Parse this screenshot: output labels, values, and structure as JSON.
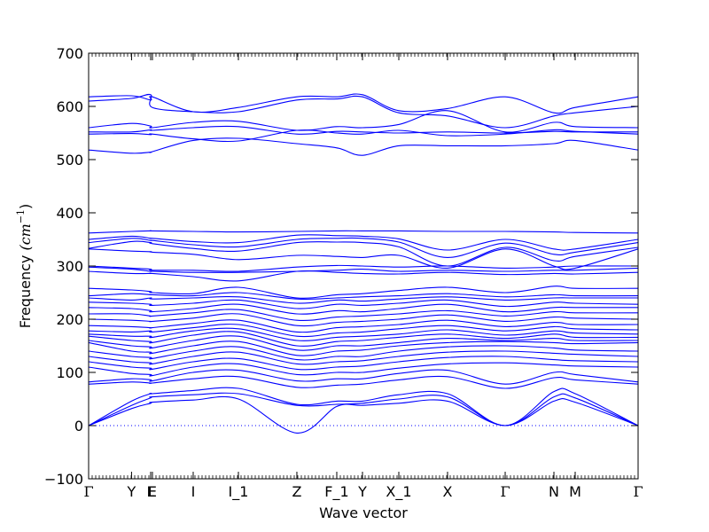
{
  "chart_data": {
    "type": "line",
    "title": "",
    "xlabel": "Wave vector",
    "ylabel": "Frequency (cm⁻¹)",
    "ylabel_text": "Frequency ",
    "ylabel_unit": "(cm",
    "ylabel_exp": "−1",
    "ylabel_close": ")",
    "ylim": [
      -100,
      700
    ],
    "yticks": [
      -100,
      0,
      100,
      200,
      300,
      400,
      500,
      600,
      700
    ],
    "grid": false,
    "line_color": "#0000ff",
    "zero_line_color": "#0000ff",
    "kpoints": [
      {
        "label": "Γ",
        "x": 0.0
      },
      {
        "label": "Y",
        "x": 0.0781
      },
      {
        "label": "L",
        "x": 0.1129
      },
      {
        "label": "E",
        "x": 0.1161
      },
      {
        "label": "I",
        "x": 0.1903
      },
      {
        "label": "I_1",
        "x": 0.2726
      },
      {
        "label": "Z",
        "x": 0.379
      },
      {
        "label": "F_1",
        "x": 0.4516
      },
      {
        "label": "Y",
        "x": 0.4984
      },
      {
        "label": "X_1",
        "x": 0.5645
      },
      {
        "label": "X",
        "x": 0.6532
      },
      {
        "label": "Γ",
        "x": 0.7581
      },
      {
        "label": "N",
        "x": 0.8468
      },
      {
        "label": "M",
        "x": 0.8855
      },
      {
        "label": "Γ",
        "x": 1.0
      }
    ],
    "optical_bands": [
      [
        618,
        620,
        612,
        618,
        590,
        598,
        618,
        618,
        622,
        592,
        596,
        618,
        588,
        598,
        618
      ],
      [
        610,
        615,
        622,
        598,
        590,
        590,
        612,
        614,
        618,
        588,
        582,
        560,
        582,
        588,
        600
      ],
      [
        560,
        568,
        563,
        560,
        570,
        572,
        555,
        562,
        560,
        566,
        592,
        552,
        570,
        562,
        560
      ],
      [
        552,
        552,
        556,
        555,
        560,
        562,
        548,
        553,
        552,
        550,
        552,
        550,
        553,
        552,
        552
      ],
      [
        548,
        549,
        547,
        548,
        539,
        535,
        555,
        550,
        548,
        555,
        545,
        548,
        556,
        553,
        548
      ],
      [
        518,
        512,
        514,
        515,
        536,
        540,
        530,
        522,
        508,
        526,
        526,
        526,
        530,
        536,
        518
      ]
    ],
    "mid_bands": [
      [
        362,
        365,
        366,
        366,
        365,
        364,
        365,
        366,
        366,
        366,
        365,
        365,
        364,
        363,
        362
      ],
      [
        350,
        356,
        352,
        352,
        346,
        344,
        358,
        357,
        356,
        351,
        330,
        350,
        332,
        332,
        350
      ],
      [
        344,
        352,
        348,
        348,
        340,
        336,
        350,
        352,
        352,
        345,
        316,
        343,
        322,
        326,
        344
      ],
      [
        333,
        346,
        344,
        342,
        333,
        328,
        344,
        345,
        344,
        336,
        300,
        335,
        310,
        318,
        335
      ],
      [
        332,
        328,
        327,
        326,
        322,
        312,
        320,
        318,
        316,
        320,
        296,
        332,
        300,
        296,
        332
      ],
      [
        300,
        296,
        294,
        292,
        292,
        290,
        298,
        301,
        300,
        298,
        300,
        296,
        298,
        300,
        300
      ],
      [
        298,
        294,
        290,
        290,
        288,
        288,
        290,
        292,
        294,
        290,
        292,
        290,
        292,
        292,
        296
      ],
      [
        290,
        286,
        286,
        286,
        280,
        272,
        290,
        288,
        286,
        285,
        288,
        284,
        286,
        285,
        288
      ]
    ],
    "low_bands": [
      [
        258,
        255,
        252,
        250,
        248,
        260,
        240,
        246,
        248,
        254,
        260,
        250,
        262,
        258,
        258
      ],
      [
        244,
        248,
        246,
        246,
        244,
        250,
        238,
        240,
        242,
        244,
        248,
        242,
        246,
        244,
        244
      ],
      [
        240,
        236,
        240,
        238,
        240,
        242,
        230,
        236,
        234,
        238,
        242,
        236,
        240,
        240,
        240
      ],
      [
        232,
        230,
        228,
        226,
        230,
        236,
        220,
        228,
        226,
        230,
        236,
        224,
        232,
        230,
        228
      ],
      [
        222,
        220,
        216,
        214,
        220,
        228,
        210,
        216,
        214,
        220,
        228,
        214,
        222,
        222,
        222
      ],
      [
        210,
        210,
        206,
        206,
        212,
        218,
        198,
        204,
        206,
        210,
        216,
        206,
        214,
        212,
        212
      ],
      [
        200,
        198,
        196,
        196,
        202,
        210,
        188,
        194,
        196,
        200,
        208,
        196,
        204,
        202,
        200
      ],
      [
        188,
        186,
        184,
        184,
        192,
        198,
        176,
        184,
        186,
        190,
        198,
        186,
        194,
        190,
        190
      ],
      [
        178,
        176,
        178,
        176,
        184,
        190,
        168,
        174,
        176,
        182,
        188,
        178,
        186,
        182,
        180
      ],
      [
        172,
        168,
        168,
        166,
        178,
        182,
        160,
        166,
        168,
        172,
        180,
        170,
        178,
        174,
        172
      ],
      [
        168,
        160,
        158,
        156,
        170,
        176,
        150,
        158,
        160,
        166,
        172,
        164,
        172,
        166,
        166
      ],
      [
        160,
        150,
        148,
        146,
        160,
        168,
        142,
        150,
        150,
        156,
        164,
        160,
        164,
        160,
        160
      ],
      [
        156,
        140,
        138,
        136,
        150,
        158,
        132,
        140,
        142,
        150,
        156,
        158,
        156,
        154,
        156
      ],
      [
        140,
        130,
        128,
        126,
        140,
        148,
        124,
        130,
        130,
        140,
        148,
        150,
        146,
        142,
        140
      ],
      [
        130,
        120,
        118,
        116,
        130,
        138,
        116,
        120,
        122,
        130,
        138,
        140,
        136,
        134,
        130
      ],
      [
        120,
        110,
        108,
        106,
        120,
        126,
        106,
        110,
        112,
        120,
        128,
        130,
        124,
        122,
        120
      ],
      [
        110,
        98,
        96,
        94,
        110,
        116,
        96,
        100,
        100,
        108,
        116,
        118,
        114,
        112,
        110
      ],
      [
        82,
        88,
        86,
        84,
        100,
        104,
        84,
        88,
        88,
        98,
        104,
        78,
        100,
        96,
        82
      ],
      [
        78,
        82,
        80,
        80,
        88,
        92,
        72,
        76,
        78,
        86,
        92,
        70,
        90,
        86,
        78
      ]
    ],
    "acoustic_bands": [
      [
        0,
        46,
        60,
        60,
        66,
        70,
        40,
        46,
        46,
        58,
        60,
        0,
        64,
        60,
        0
      ],
      [
        0,
        38,
        52,
        54,
        58,
        60,
        38,
        40,
        42,
        50,
        54,
        0,
        54,
        52,
        0
      ],
      [
        0,
        32,
        42,
        44,
        48,
        50,
        -14,
        36,
        38,
        42,
        46,
        0,
        46,
        44,
        0
      ]
    ]
  }
}
